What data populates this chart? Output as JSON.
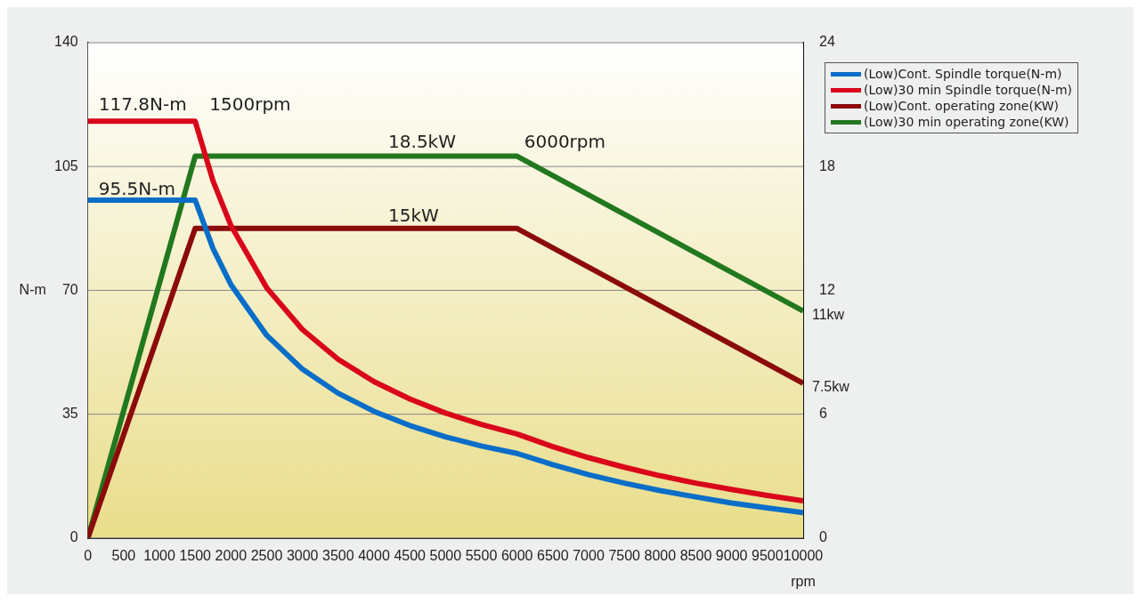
{
  "chart_data": {
    "type": "line",
    "xlabel": "rpm",
    "ylabel": "N-m",
    "xlim": [
      0,
      10000
    ],
    "xticks": [
      0,
      500,
      1000,
      1500,
      2000,
      2500,
      3000,
      3500,
      4000,
      4500,
      5000,
      5500,
      6000,
      6500,
      7000,
      7500,
      8000,
      8500,
      9000,
      9500,
      10000
    ],
    "ylim": [
      0,
      140
    ],
    "yticks": [
      0,
      35,
      70,
      105,
      140
    ],
    "y2lim": [
      0,
      24
    ],
    "y2ticks": [
      0,
      6,
      12,
      18,
      24
    ],
    "grid": "y",
    "legend": "top right",
    "marker": "none",
    "line_style": "solid",
    "series": [
      {
        "name": "(Low)Cont. Spindle torque(N-m)",
        "color": "#0a6ec8",
        "x": [
          0,
          1500,
          1750,
          2000,
          2500,
          3000,
          3500,
          4000,
          4500,
          5000,
          5500,
          6000,
          6500,
          7000,
          7500,
          8000,
          8500,
          9000,
          9500,
          10000
        ],
        "values": [
          95.5,
          95.5,
          81.8,
          71.6,
          57.3,
          47.7,
          40.9,
          35.8,
          31.8,
          28.6,
          26.0,
          23.9,
          20.7,
          17.9,
          15.5,
          13.4,
          11.6,
          9.9,
          8.5,
          7.2
        ]
      },
      {
        "name": "(Low)30 min Spindle torque(N-m)",
        "color": "#d9061a",
        "x": [
          0,
          1500,
          1750,
          2000,
          2500,
          3000,
          3500,
          4000,
          4500,
          5000,
          5500,
          6000,
          6500,
          7000,
          7500,
          8000,
          8500,
          9000,
          9500,
          10000
        ],
        "values": [
          117.8,
          117.8,
          100.9,
          88.3,
          70.7,
          58.9,
          50.5,
          44.2,
          39.3,
          35.3,
          32.1,
          29.4,
          25.8,
          22.7,
          20.0,
          17.6,
          15.5,
          13.7,
          12.0,
          10.5
        ]
      },
      {
        "name": "(Low)Cont. operating zone(KW)",
        "color": "#8b0a0a",
        "axis": "y2",
        "x": [
          0,
          1500,
          6000,
          10000
        ],
        "values": [
          0,
          15,
          15,
          7.5
        ]
      },
      {
        "name": "(Low)30 min operating zone(KW)",
        "color": "#22781e",
        "axis": "y2",
        "x": [
          0,
          1500,
          6000,
          10000
        ],
        "values": [
          0,
          18.5,
          18.5,
          11
        ]
      }
    ],
    "annotations": [
      "117.8N-m",
      "1500rpm",
      "95.5N-m",
      "18.5kW",
      "6000rpm",
      "15kW",
      "11kw",
      "7.5kw"
    ]
  }
}
